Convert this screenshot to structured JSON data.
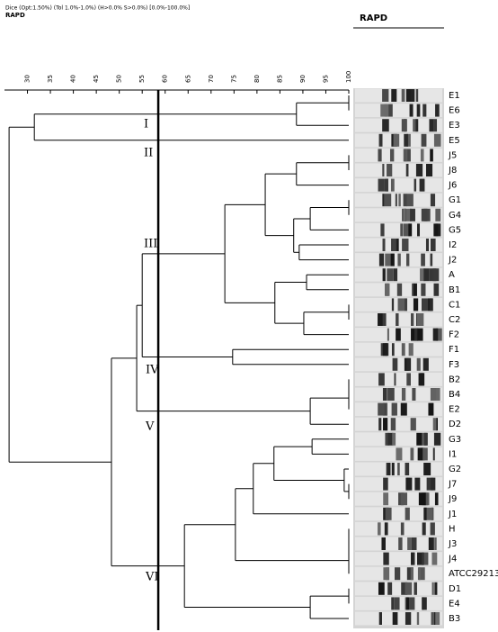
{
  "chart_data": {
    "type": "dendrogram",
    "header": "Dice (Opt:1.50%) (Tol 1.0%-1.0%) (H>0.0% S>0.0%) [0.0%-100.0%]",
    "title": "RAPD",
    "gel_title": "RAPD",
    "xlim": [
      25,
      100
    ],
    "xticks": [
      30,
      35,
      40,
      45,
      50,
      55,
      60,
      65,
      70,
      75,
      80,
      85,
      90,
      95,
      100
    ],
    "cutoff": 58.5,
    "clusters": [
      "I",
      "II",
      "III",
      "IV",
      "V",
      "VI"
    ],
    "tree": {
      "similarity": 26,
      "children": [
        {
          "similarity": 31.5,
          "children": [
            {
              "similarity": 88.6,
              "children": [
                {
                  "similarity": 100,
                  "children": [
                    {
                      "label": "E1"
                    },
                    {
                      "label": "E6"
                    }
                  ]
                },
                {
                  "label": "E3"
                }
              ]
            },
            {
              "label": "E5"
            }
          ]
        },
        {
          "similarity": 48.3,
          "children": [
            {
              "similarity": 53.8,
              "children": [
                {
                  "similarity": 55,
                  "children": [
                    {
                      "similarity": 73,
                      "children": [
                        {
                          "similarity": 81.8,
                          "children": [
                            {
                              "similarity": 88.6,
                              "children": [
                                {
                                  "similarity": 100,
                                  "children": [
                                    {
                                      "label": "J5"
                                    },
                                    {
                                      "label": "J8"
                                    }
                                  ]
                                },
                                {
                                  "label": "J6"
                                }
                              ]
                            },
                            {
                              "similarity": 88,
                              "children": [
                                {
                                  "similarity": 91.6,
                                  "children": [
                                    {
                                      "similarity": 100,
                                      "children": [
                                        {
                                          "label": "G1"
                                        },
                                        {
                                          "label": "G4"
                                        }
                                      ]
                                    },
                                    {
                                      "label": "G5"
                                    }
                                  ]
                                },
                                {
                                  "similarity": 89.2,
                                  "children": [
                                    {
                                      "label": "I2"
                                    },
                                    {
                                      "label": "J2"
                                    }
                                  ]
                                }
                              ]
                            }
                          ]
                        },
                        {
                          "similarity": 83.9,
                          "children": [
                            {
                              "similarity": 90.8,
                              "children": [
                                {
                                  "label": "A"
                                },
                                {
                                  "label": "B1"
                                }
                              ]
                            },
                            {
                              "similarity": 90.2,
                              "children": [
                                {
                                  "similarity": 100,
                                  "children": [
                                    {
                                      "label": "C1"
                                    },
                                    {
                                      "label": "C2"
                                    }
                                  ]
                                },
                                {
                                  "label": "F2"
                                }
                              ]
                            }
                          ]
                        }
                      ]
                    },
                    {
                      "similarity": 74.7,
                      "children": [
                        {
                          "label": "F1"
                        },
                        {
                          "label": "F3"
                        }
                      ]
                    }
                  ]
                },
                {
                  "similarity": 91.6,
                  "children": [
                    {
                      "similarity": 100,
                      "children": [
                        {
                          "similarity": 100,
                          "children": [
                            {
                              "label": "B2"
                            },
                            {
                              "label": "B4"
                            }
                          ]
                        },
                        {
                          "label": "E2"
                        }
                      ]
                    },
                    {
                      "label": "D2"
                    }
                  ]
                }
              ]
            },
            {
              "similarity": 64.2,
              "children": [
                {
                  "similarity": 75.3,
                  "children": [
                    {
                      "similarity": 79.2,
                      "children": [
                        {
                          "similarity": 83.7,
                          "children": [
                            {
                              "similarity": 92,
                              "children": [
                                {
                                  "label": "G3"
                                },
                                {
                                  "label": "I1"
                                }
                              ]
                            },
                            {
                              "similarity": 99,
                              "children": [
                                {
                                  "label": "G2"
                                },
                                {
                                  "similarity": 100,
                                  "children": [
                                    {
                                      "label": "J7"
                                    },
                                    {
                                      "label": "J9"
                                    }
                                  ]
                                }
                              ]
                            }
                          ]
                        },
                        {
                          "label": "J1"
                        }
                      ]
                    },
                    {
                      "similarity": 100,
                      "children": [
                        {
                          "similarity": 100,
                          "children": [
                            {
                              "similarity": 100,
                              "children": [
                                {
                                  "label": "H"
                                },
                                {
                                  "label": "J3"
                                }
                              ]
                            },
                            {
                              "label": "J4"
                            }
                          ]
                        },
                        {
                          "label": "ATCC29213"
                        }
                      ]
                    }
                  ]
                },
                {
                  "similarity": 91.6,
                  "children": [
                    {
                      "similarity": 100,
                      "children": [
                        {
                          "label": "D1"
                        },
                        {
                          "label": "E4"
                        }
                      ]
                    },
                    {
                      "label": "B3"
                    }
                  ]
                }
              ]
            }
          ]
        }
      ]
    }
  }
}
